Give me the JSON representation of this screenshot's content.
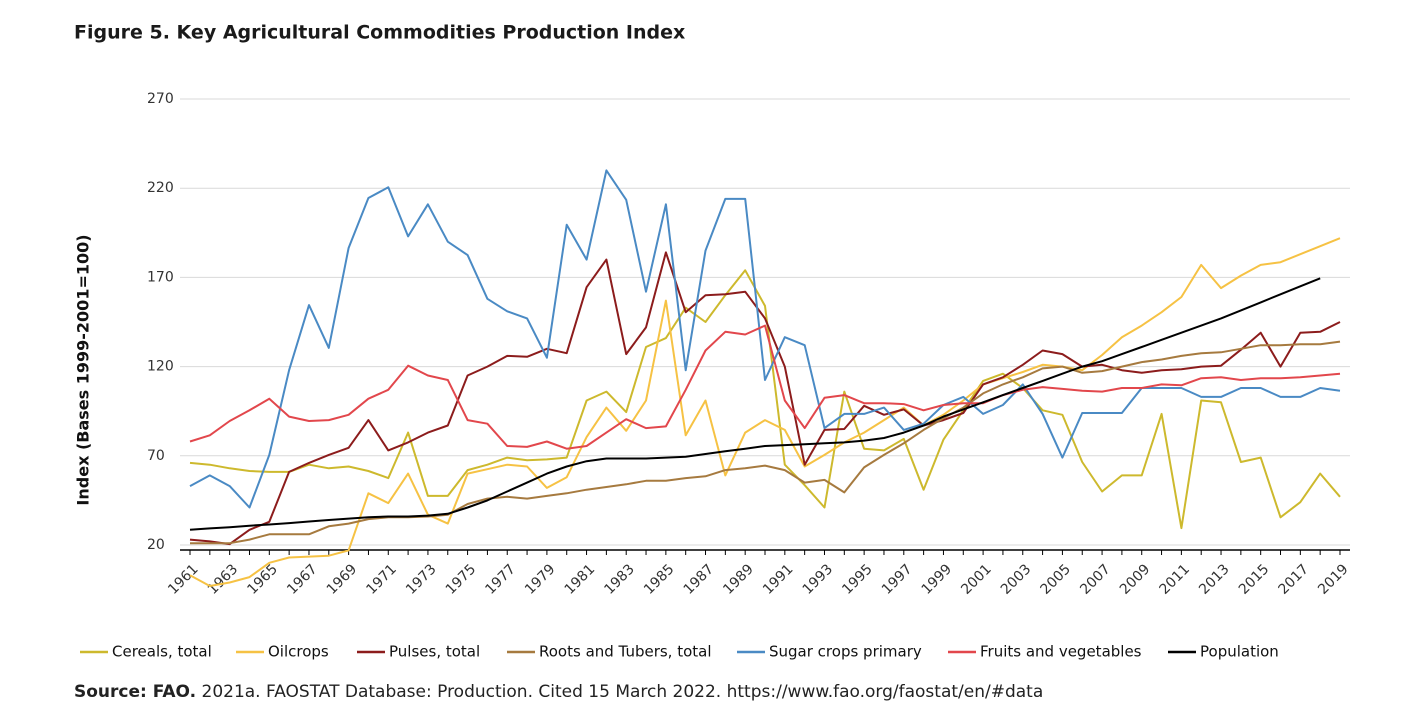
{
  "chart_data": {
    "type": "line",
    "title": "Figure 5. Key Agricultural Commodities Production Index",
    "y_axis_label": "Index (Bases 1999-2001=100)",
    "source_label": "Source: FAO.",
    "source_text": "2021a. FAOSTAT Database: Production. Cited 15 March 2022. https://www.fao.org/faostat/en/#data",
    "ylim": [
      20,
      270
    ],
    "yticks": [
      20,
      70,
      120,
      170,
      220,
      270
    ],
    "grid": true,
    "legend": "bottom",
    "categories": [
      "1961",
      null,
      "1963",
      null,
      "1965",
      null,
      "1967",
      null,
      "1969",
      null,
      "1971",
      null,
      "1973",
      null,
      "1975",
      null,
      "1977",
      null,
      "1979",
      null,
      "1981",
      null,
      "1983",
      null,
      "1985",
      null,
      "1987",
      null,
      "1989",
      null,
      "1991",
      null,
      "1993",
      null,
      "1995",
      null,
      "1997",
      null,
      "1999",
      null,
      "2001",
      null,
      "2003",
      null,
      "2005",
      null,
      "2007",
      null,
      "2009",
      null,
      "2011",
      null,
      "2013",
      null,
      "2015",
      null,
      "2017",
      null,
      "2019"
    ],
    "series": [
      {
        "name": "Cereals, total",
        "color": "#cdb92d",
        "values": [
          66,
          65,
          63,
          61.5,
          61,
          61,
          65,
          63,
          64,
          61.5,
          57.5,
          83,
          47.5,
          47.5,
          62,
          65,
          69,
          67.5,
          68,
          69,
          101,
          106,
          94.5,
          131,
          136,
          153,
          145,
          160,
          174,
          154,
          65,
          53.5,
          41,
          106,
          74,
          73,
          79.5,
          51,
          79,
          95.5,
          112,
          116,
          108,
          95.5,
          93,
          66.5,
          50,
          59,
          59,
          93.5,
          29.5,
          101,
          100,
          66.5,
          69,
          35.5,
          44,
          60,
          47
        ]
      },
      {
        "name": "Oilcrops",
        "color": "#f6c244",
        "values": [
          3,
          -3,
          -1,
          2,
          10,
          13,
          13.5,
          14,
          17,
          49,
          43.5,
          60,
          37,
          32,
          60,
          62.5,
          65,
          64,
          52,
          58,
          80.5,
          97,
          84,
          101,
          157,
          81.5,
          101,
          59,
          83,
          90,
          84.5,
          64,
          70.5,
          77.5,
          83,
          90,
          97,
          87,
          93,
          101,
          110,
          113.5,
          117,
          121,
          120,
          118,
          126.5,
          136.5,
          143,
          150.5,
          159,
          177,
          164,
          171,
          177,
          178.5,
          183,
          187.5,
          192
        ]
      },
      {
        "name": "Pulses, total",
        "color": "#8c1c1c",
        "values": [
          23,
          22,
          20.5,
          28.5,
          33,
          61,
          66,
          70.5,
          74.5,
          90,
          73,
          77.5,
          83,
          87,
          115,
          120,
          126,
          125.5,
          130,
          127.5,
          164.5,
          180,
          127,
          142,
          184,
          150.5,
          160,
          160.5,
          162,
          147,
          120,
          65,
          84.5,
          85,
          98,
          93,
          96,
          87,
          90,
          94,
          110,
          114,
          121,
          129,
          127,
          120,
          121,
          118,
          116.5,
          118,
          118.5,
          120,
          120.5,
          129.5,
          139,
          120,
          139,
          139.5,
          145
        ]
      },
      {
        "name": "Roots and Tubers, total",
        "color": "#a67a3f",
        "values": [
          21,
          21,
          21,
          23,
          26,
          26,
          26,
          30.5,
          32,
          34.5,
          35.5,
          35.5,
          36,
          37,
          43,
          46,
          47,
          46,
          47.5,
          49,
          51,
          52.5,
          54,
          56,
          56,
          57.5,
          58.5,
          62,
          63,
          64.5,
          62,
          55,
          56.5,
          49.5,
          63.5,
          70.5,
          77,
          84.5,
          91,
          97,
          105,
          110,
          114,
          119,
          120,
          116.5,
          117.5,
          120,
          122.5,
          124,
          126,
          127.5,
          128,
          130,
          132,
          132,
          132.5,
          132.5,
          134
        ]
      },
      {
        "name": "Sugar crops primary",
        "color": "#4a8ac4",
        "values": [
          53,
          59,
          53,
          41,
          70.5,
          118,
          154.5,
          130.5,
          186.5,
          214.5,
          220.5,
          193,
          211,
          190,
          182.5,
          158,
          151,
          147,
          125,
          199.5,
          180,
          230,
          213.5,
          162,
          211,
          118,
          185,
          214,
          214,
          112.5,
          136.5,
          132,
          85.5,
          93.5,
          93.5,
          97,
          84.5,
          88,
          98.5,
          103,
          93.5,
          98.5,
          110,
          93.5,
          69,
          94,
          94,
          94,
          108,
          108,
          108,
          103,
          103,
          108,
          108,
          103,
          103,
          108,
          106.5
        ]
      },
      {
        "name": "Fruits and vegetables",
        "color": "#e2474c",
        "values": [
          78,
          81.5,
          89.5,
          95.5,
          102,
          92,
          89.5,
          90,
          93,
          102,
          107,
          120.5,
          115,
          112.5,
          90,
          88,
          75.5,
          75,
          78,
          74,
          75.5,
          83,
          90.5,
          85.5,
          86.5,
          107,
          129,
          139.5,
          138,
          143,
          101,
          85.5,
          102.5,
          104,
          99.5,
          99.5,
          99,
          95.5,
          98.5,
          99.5,
          99.5,
          104,
          107,
          108.5,
          107.5,
          106.5,
          106,
          108,
          108,
          110,
          109.5,
          113.5,
          114,
          112.5,
          113.5,
          113.5,
          114,
          115,
          116
        ]
      },
      {
        "name": "Population",
        "color": "#000000",
        "values": [
          28.5,
          29.3,
          30,
          30.8,
          31.5,
          32.3,
          33.2,
          34,
          34.8,
          35.5,
          36,
          36,
          36.5,
          37.5,
          41,
          45,
          50,
          55,
          60,
          64,
          67,
          68.5,
          68.5,
          68.5,
          69,
          69.5,
          71,
          72.5,
          74,
          75.5,
          76,
          76.5,
          77,
          77.5,
          78.5,
          80,
          83,
          87,
          92,
          96,
          100,
          104,
          108,
          112,
          116,
          120,
          123,
          127,
          131,
          135,
          139,
          143,
          147,
          151.5,
          156,
          160.5,
          165,
          169.5,
          null
        ]
      }
    ]
  }
}
